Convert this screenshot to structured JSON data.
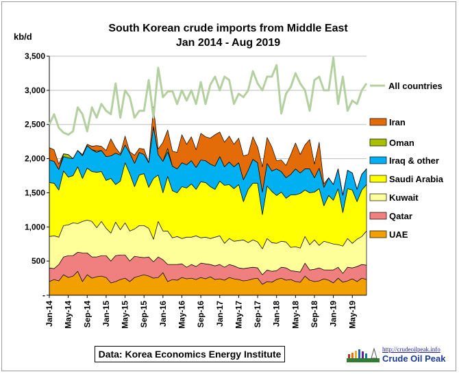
{
  "chart_data": {
    "type": "area",
    "title": "South Korean crude imports from Middle East",
    "subtitle": "Jan 2014 - Aug 2019",
    "ylabel": "kb/d",
    "ylim": [
      0,
      3500
    ],
    "yticks": [
      0,
      500,
      1000,
      1500,
      2000,
      2500,
      3000,
      3500
    ],
    "ytick_labels": [
      "-",
      "500",
      "1,000",
      "1,500",
      "2,000",
      "2,500",
      "3,000",
      "3,500"
    ],
    "grid": true,
    "legend_position": "right",
    "x_tick_labels": [
      "Jan-14",
      "May-14",
      "Sep-14",
      "Jan-15",
      "May-15",
      "Sep-15",
      "Jan-16",
      "May-16",
      "Sep-16",
      "Jan-17",
      "May-17",
      "Sep-17",
      "Jan-18",
      "May-18",
      "Sep-18",
      "Jan-19",
      "May-19"
    ],
    "stacked_series": [
      {
        "name": "UAE",
        "color": "#f2a000",
        "values": [
          200,
          230,
          210,
          300,
          260,
          280,
          350,
          200,
          300,
          250,
          270,
          280,
          260,
          180,
          200,
          230,
          250,
          200,
          260,
          280,
          300,
          280,
          250,
          260,
          330,
          200,
          230,
          220,
          260,
          240,
          250,
          230,
          260,
          240,
          270,
          230,
          240,
          220,
          260,
          240,
          230,
          210,
          220,
          240,
          250,
          160,
          200,
          190,
          230,
          250,
          220,
          230,
          200,
          190,
          280,
          220,
          200,
          210,
          240,
          220,
          180,
          250,
          190,
          210,
          240,
          200,
          250,
          230
        ]
      },
      {
        "name": "Qatar",
        "color": "#f08080",
        "values": [
          200,
          160,
          240,
          260,
          320,
          300,
          280,
          420,
          320,
          310,
          290,
          300,
          320,
          320,
          380,
          360,
          340,
          300,
          310,
          280,
          250,
          280,
          240,
          300,
          190,
          250,
          220,
          230,
          200,
          170,
          200,
          190,
          210,
          220,
          180,
          200,
          210,
          190,
          190,
          190,
          170,
          180,
          180,
          170,
          150,
          140,
          170,
          160,
          130,
          160,
          180,
          130,
          150,
          150,
          190,
          150,
          180,
          190,
          130,
          150,
          190,
          160,
          130,
          200,
          160,
          220,
          200,
          210
        ]
      },
      {
        "name": "Kuwait",
        "color": "#ffff99",
        "values": [
          460,
          480,
          400,
          460,
          450,
          480,
          420,
          460,
          480,
          520,
          430,
          500,
          400,
          410,
          490,
          370,
          470,
          440,
          400,
          460,
          470,
          420,
          330,
          520,
          420,
          490,
          390,
          410,
          370,
          440,
          400,
          450,
          370,
          390,
          380,
          420,
          420,
          350,
          380,
          360,
          400,
          420,
          370,
          400,
          380,
          380,
          460,
          420,
          400,
          380,
          380,
          340,
          360,
          350,
          390,
          370,
          430,
          330,
          420,
          400,
          380,
          330,
          400,
          420,
          360,
          400,
          410,
          500
        ]
      },
      {
        "name": "Saudi Arabia",
        "color": "#ffff00",
        "values": [
          790,
          770,
          690,
          800,
          700,
          690,
          830,
          630,
          760,
          730,
          810,
          730,
          700,
          800,
          550,
          710,
          880,
          840,
          620,
          740,
          760,
          600,
          890,
          680,
          560,
          800,
          690,
          640,
          760,
          720,
          780,
          680,
          820,
          800,
          760,
          700,
          800,
          850,
          790,
          770,
          820,
          560,
          780,
          830,
          860,
          500,
          770,
          750,
          700,
          720,
          640,
          770,
          760,
          800,
          680,
          760,
          700,
          830,
          520,
          690,
          640,
          820,
          490,
          730,
          780,
          550,
          680,
          680
        ]
      },
      {
        "name": "Iraq & other",
        "color": "#00b0f0",
        "values": [
          330,
          320,
          300,
          210,
          280,
          250,
          240,
          330,
          330,
          320,
          290,
          310,
          350,
          330,
          460,
          380,
          260,
          300,
          340,
          330,
          280,
          360,
          760,
          300,
          460,
          360,
          360,
          350,
          350,
          340,
          340,
          320,
          320,
          320,
          330,
          340,
          360,
          270,
          330,
          320,
          320,
          320,
          280,
          350,
          300,
          330,
          330,
          300,
          390,
          300,
          300,
          300,
          380,
          300,
          310,
          350,
          210,
          300,
          270,
          260,
          230,
          290,
          250,
          270,
          250,
          180,
          230,
          230
        ]
      },
      {
        "name": "Oman",
        "color": "#a8c000",
        "values": [
          0,
          0,
          0,
          40,
          50,
          0,
          0,
          0,
          0,
          0,
          20,
          0,
          0,
          0,
          0,
          0,
          0,
          0,
          0,
          0,
          0,
          0,
          0,
          0,
          0,
          50,
          0,
          0,
          0,
          0,
          0,
          0,
          0,
          0,
          0,
          0,
          0,
          0,
          0,
          0,
          0,
          0,
          0,
          0,
          0,
          0,
          0,
          0,
          0,
          0,
          0,
          0,
          0,
          0,
          0,
          0,
          0,
          0,
          0,
          0,
          0,
          0,
          0,
          0,
          0,
          0,
          0,
          0
        ]
      },
      {
        "name": "Iran",
        "color": "#e36c09",
        "values": [
          180,
          170,
          80,
          0,
          0,
          0,
          0,
          20,
          20,
          50,
          80,
          60,
          90,
          250,
          80,
          20,
          130,
          20,
          120,
          60,
          80,
          0,
          290,
          80,
          280,
          270,
          220,
          240,
          410,
          300,
          350,
          260,
          390,
          350,
          380,
          460,
          360,
          360,
          380,
          330,
          360,
          350,
          230,
          330,
          230,
          370,
          380,
          350,
          120,
          170,
          180,
          290,
          380,
          270,
          350,
          430,
          200,
          380,
          50,
          0,
          0,
          0,
          0,
          0,
          0,
          0,
          0,
          0
        ]
      }
    ],
    "total_series": {
      "name": "All countries",
      "color": "#b4cfa0",
      "values": [
        2500,
        2650,
        2450,
        2380,
        2350,
        2400,
        2750,
        2650,
        2400,
        2750,
        2600,
        2800,
        2700,
        2650,
        3100,
        2600,
        3000,
        2900,
        2600,
        2700,
        2700,
        3150,
        2600,
        3330,
        2900,
        2980,
        2990,
        2800,
        3000,
        2850,
        3000,
        2800,
        3120,
        2800,
        3080,
        3200,
        3000,
        3200,
        3150,
        2800,
        2950,
        2900,
        3000,
        3280,
        3100,
        3000,
        3200,
        3200,
        3370,
        2660,
        2950,
        3050,
        3250,
        3100,
        3000,
        2700,
        3150,
        3200,
        3000,
        3000,
        3480,
        2800,
        3200,
        2700,
        2850,
        2800,
        3000,
        3100
      ]
    }
  },
  "source_label": "Data: Korea Economics Energy Institute",
  "brand": {
    "url": "http://crudeoilpeak.info",
    "name": "Crude Oil Peak"
  }
}
